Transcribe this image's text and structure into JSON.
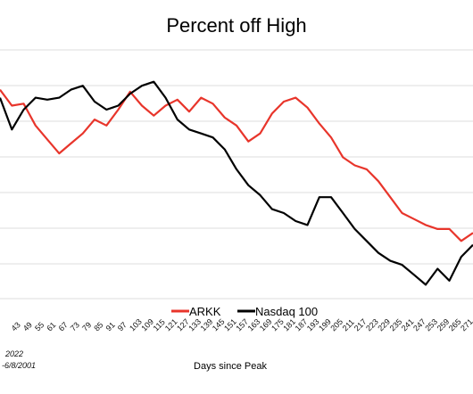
{
  "chart_data": {
    "type": "line",
    "title": "Percent off High",
    "xlabel": "Days since Peak",
    "ylabel": "",
    "notes": [
      "2022",
      "-6/8/2001"
    ],
    "legend_position": "bottom",
    "grid": "horizontal",
    "x_tick_labels": [
      "43",
      "49",
      "55",
      "61",
      "67",
      "73",
      "79",
      "85",
      "91",
      "97",
      "103",
      "109",
      "115",
      "121",
      "127",
      "133",
      "139",
      "145",
      "151",
      "157",
      "163",
      "169",
      "175",
      "181",
      "187",
      "193",
      "199",
      "205",
      "211",
      "217",
      "223",
      "229",
      "235",
      "241",
      "247",
      "253",
      "259",
      "265",
      "271"
    ],
    "x": [
      37,
      43,
      49,
      55,
      61,
      67,
      73,
      79,
      85,
      91,
      97,
      103,
      109,
      115,
      121,
      127,
      133,
      139,
      145,
      151,
      157,
      163,
      169,
      175,
      181,
      187,
      193,
      199,
      205,
      211,
      217,
      223,
      229,
      235,
      241,
      247,
      253,
      259,
      265,
      271,
      277
    ],
    "series": [
      {
        "name": "ARKK",
        "color": "#e8352b",
        "values": [
          0.1,
          0.02,
          0.03,
          -0.08,
          -0.15,
          -0.22,
          -0.17,
          -0.12,
          -0.05,
          -0.08,
          0.0,
          0.09,
          0.02,
          -0.03,
          0.02,
          0.05,
          -0.01,
          0.06,
          0.03,
          -0.04,
          -0.08,
          -0.16,
          -0.12,
          -0.02,
          0.04,
          0.06,
          0.01,
          -0.07,
          -0.14,
          -0.24,
          -0.28,
          -0.3,
          -0.36,
          -0.44,
          -0.52,
          -0.55,
          -0.58,
          -0.6,
          -0.6,
          -0.66,
          -0.62
        ]
      },
      {
        "name": "Nasdaq 100",
        "color": "#000000",
        "values": [
          0.06,
          -0.1,
          0.0,
          0.06,
          0.05,
          0.06,
          0.1,
          0.12,
          0.04,
          0.0,
          0.02,
          0.08,
          0.12,
          0.14,
          0.06,
          -0.05,
          -0.1,
          -0.12,
          -0.14,
          -0.2,
          -0.3,
          -0.38,
          -0.43,
          -0.5,
          -0.52,
          -0.56,
          -0.58,
          -0.44,
          -0.44,
          -0.52,
          -0.6,
          -0.66,
          -0.72,
          -0.76,
          -0.78,
          -0.83,
          -0.88,
          -0.8,
          -0.86,
          -0.74,
          -0.68
        ]
      }
    ]
  }
}
